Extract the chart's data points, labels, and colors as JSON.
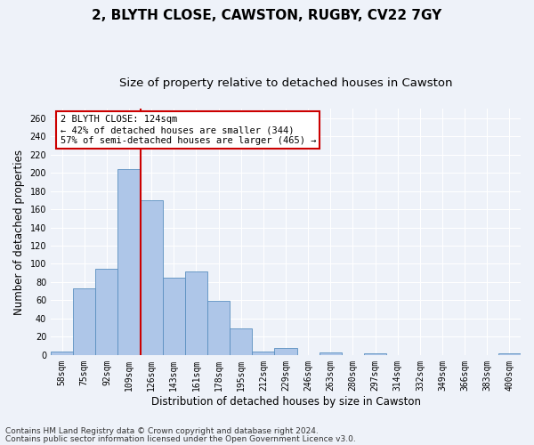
{
  "title1": "2, BLYTH CLOSE, CAWSTON, RUGBY, CV22 7GY",
  "title2": "Size of property relative to detached houses in Cawston",
  "xlabel": "Distribution of detached houses by size in Cawston",
  "ylabel": "Number of detached properties",
  "bar_labels": [
    "58sqm",
    "75sqm",
    "92sqm",
    "109sqm",
    "126sqm",
    "143sqm",
    "161sqm",
    "178sqm",
    "195sqm",
    "212sqm",
    "229sqm",
    "246sqm",
    "263sqm",
    "280sqm",
    "297sqm",
    "314sqm",
    "332sqm",
    "349sqm",
    "366sqm",
    "383sqm",
    "400sqm"
  ],
  "bar_values": [
    4,
    73,
    95,
    204,
    170,
    85,
    92,
    59,
    29,
    4,
    8,
    0,
    3,
    0,
    2,
    0,
    0,
    0,
    0,
    0,
    2
  ],
  "bar_color": "#aec6e8",
  "bar_edge_color": "#5a8fc0",
  "vline_index": 4,
  "vline_color": "#cc0000",
  "ylim": [
    0,
    270
  ],
  "yticks": [
    0,
    20,
    40,
    60,
    80,
    100,
    120,
    140,
    160,
    180,
    200,
    220,
    240,
    260
  ],
  "annotation_title": "2 BLYTH CLOSE: 124sqm",
  "annotation_line1": "← 42% of detached houses are smaller (344)",
  "annotation_line2": "57% of semi-detached houses are larger (465) →",
  "annotation_box_color": "#ffffff",
  "annotation_box_edge": "#cc0000",
  "footer1": "Contains HM Land Registry data © Crown copyright and database right 2024.",
  "footer2": "Contains public sector information licensed under the Open Government Licence v3.0.",
  "background_color": "#eef2f9",
  "grid_color": "#ffffff",
  "title1_fontsize": 11,
  "title2_fontsize": 9.5,
  "axis_label_fontsize": 8.5,
  "tick_fontsize": 7,
  "annotation_fontsize": 7.5,
  "footer_fontsize": 6.5
}
